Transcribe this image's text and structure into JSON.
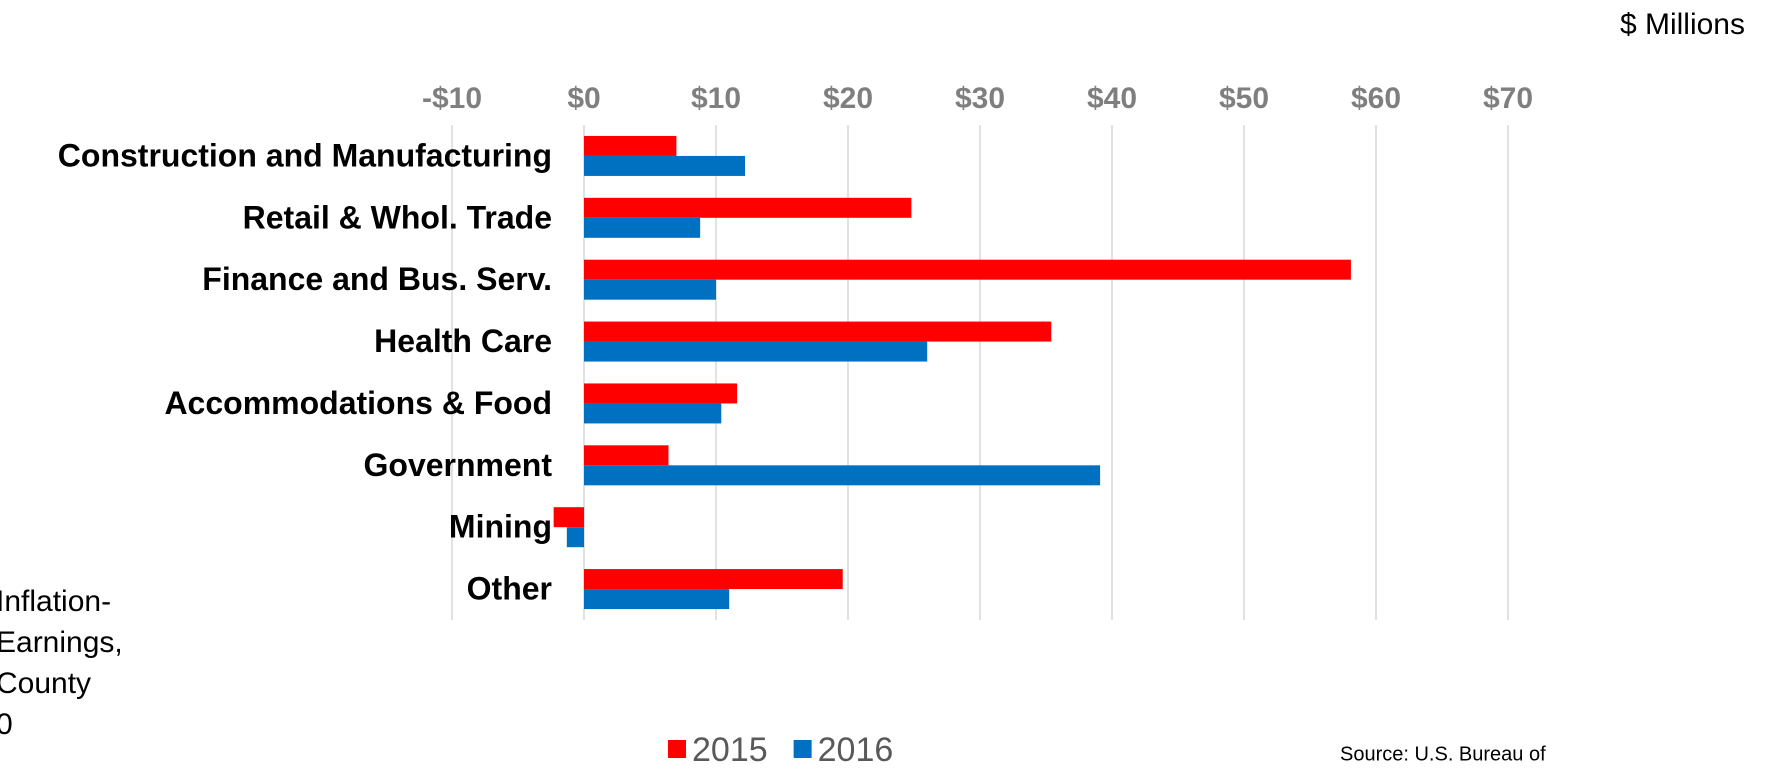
{
  "chart_data": {
    "type": "hbar",
    "unit_label": "$ Millions",
    "categories": [
      "Construction and Manufacturing",
      "Retail & Whol. Trade",
      "Finance and Bus. Serv.",
      "Health Care",
      "Accommodations & Food",
      "Government",
      "Mining",
      "Other"
    ],
    "series": [
      {
        "name": "2015",
        "color": "#ff0000",
        "values": [
          7.0,
          24.8,
          58.1,
          35.4,
          11.6,
          6.4,
          -2.3,
          19.6
        ]
      },
      {
        "name": "2016",
        "color": "#0070c0",
        "values": [
          12.2,
          8.8,
          10.0,
          26.0,
          10.4,
          39.1,
          -1.3,
          11.0
        ]
      }
    ],
    "xlim": [
      -10,
      70
    ],
    "xticks": [
      {
        "value": -10,
        "label": "-$10"
      },
      {
        "value": 0,
        "label": "$0"
      },
      {
        "value": 10,
        "label": "$10"
      },
      {
        "value": 20,
        "label": "$20"
      },
      {
        "value": 30,
        "label": "$30"
      },
      {
        "value": 40,
        "label": "$40"
      },
      {
        "value": 50,
        "label": "$50"
      },
      {
        "value": 60,
        "label": "$60"
      },
      {
        "value": 70,
        "label": "$70"
      }
    ],
    "grid": true,
    "legend": "bottom",
    "side_text": [
      "Inflation-",
      "Earnings,",
      "County",
      "0"
    ],
    "source": "Source:  U.S. Bureau of"
  }
}
